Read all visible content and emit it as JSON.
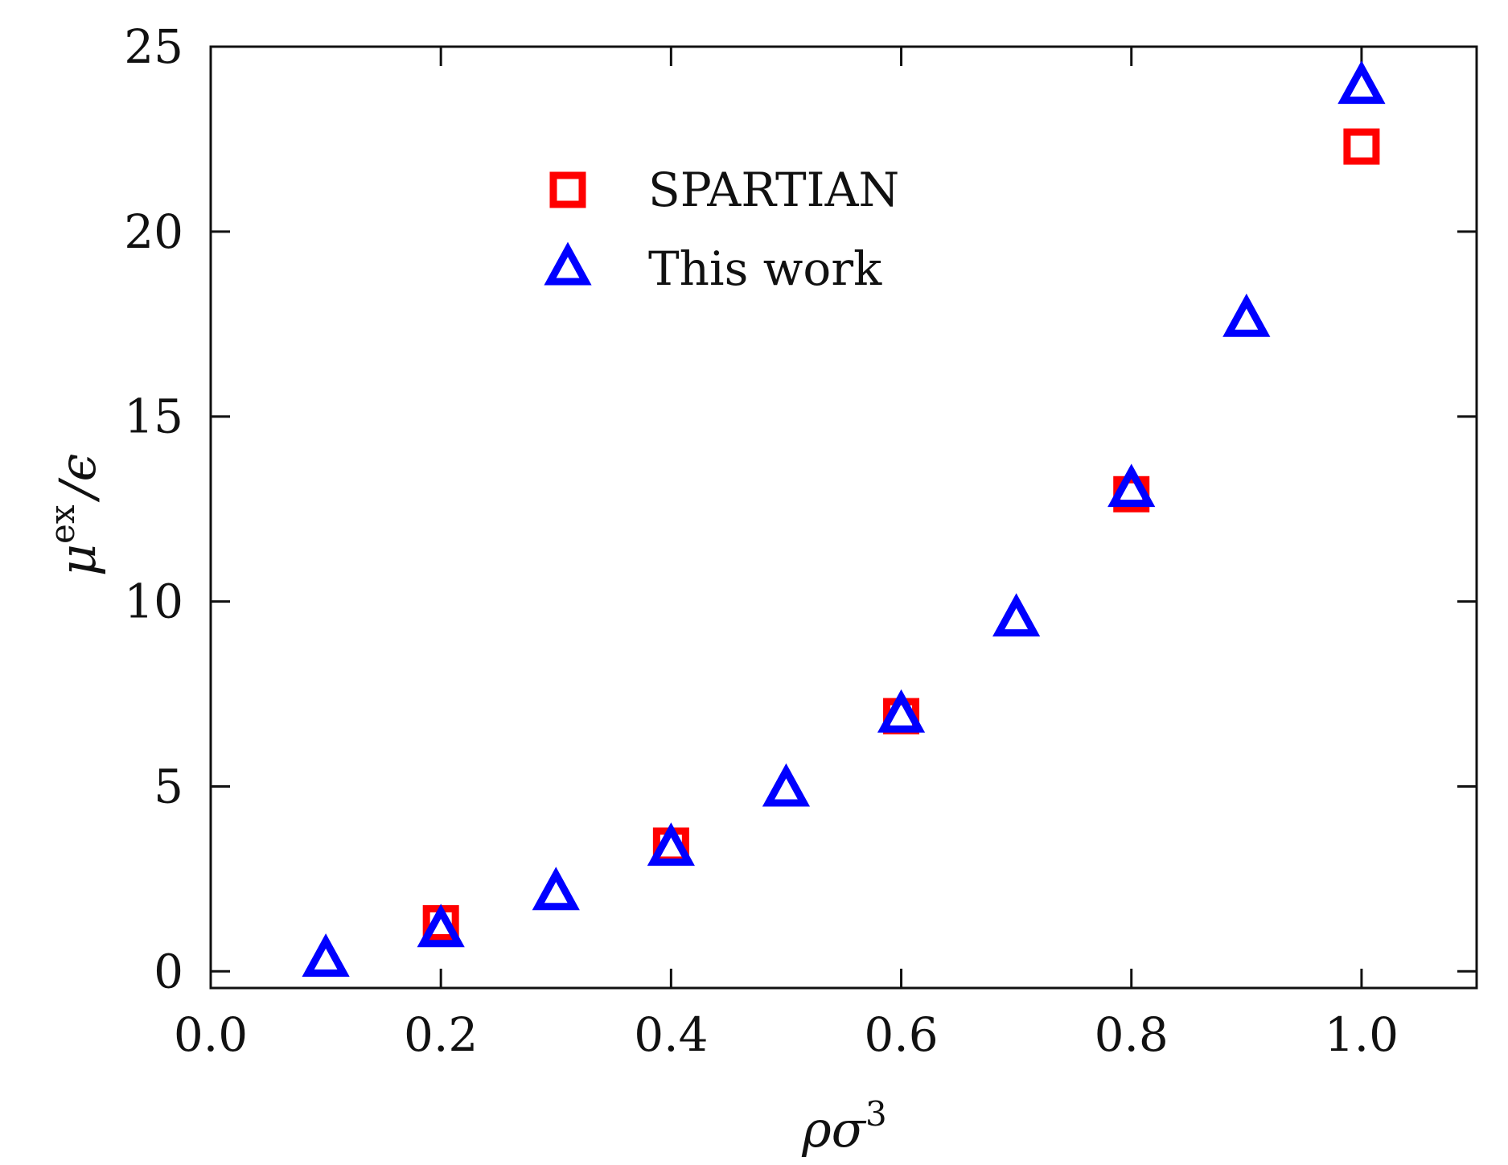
{
  "chart_data": {
    "type": "scatter",
    "title": "",
    "xlabel": "ρσ",
    "xlabel_sup": "3",
    "ylabel": "μ",
    "ylabel_sup": "ex",
    "ylabel_rest": "/ϵ",
    "xlim": [
      0.0,
      1.1
    ],
    "ylim": [
      -0.45,
      25
    ],
    "xticks": [
      0.0,
      0.2,
      0.4,
      0.6,
      0.8,
      1.0
    ],
    "xtick_labels": [
      "0.0",
      "0.2",
      "0.4",
      "0.6",
      "0.8",
      "1.0"
    ],
    "yticks": [
      0,
      5,
      10,
      15,
      20,
      25
    ],
    "ytick_labels": [
      "0",
      "5",
      "10",
      "15",
      "20",
      "25"
    ],
    "grid": false,
    "legend_position": "upper-left-center",
    "series": [
      {
        "name": "SPARTIAN",
        "marker": "square",
        "color": "#ff0000",
        "x": [
          0.2,
          0.4,
          0.6,
          0.8,
          1.0
        ],
        "y": [
          1.3,
          3.4,
          6.9,
          12.9,
          22.3
        ]
      },
      {
        "name": "This work",
        "marker": "triangle",
        "color": "#0000ff",
        "x": [
          0.1,
          0.2,
          0.3,
          0.4,
          0.5,
          0.6,
          0.7,
          0.8,
          0.9,
          1.0
        ],
        "y": [
          0.3,
          1.1,
          2.1,
          3.3,
          4.9,
          6.9,
          9.5,
          13.0,
          17.6,
          23.9
        ]
      }
    ]
  }
}
